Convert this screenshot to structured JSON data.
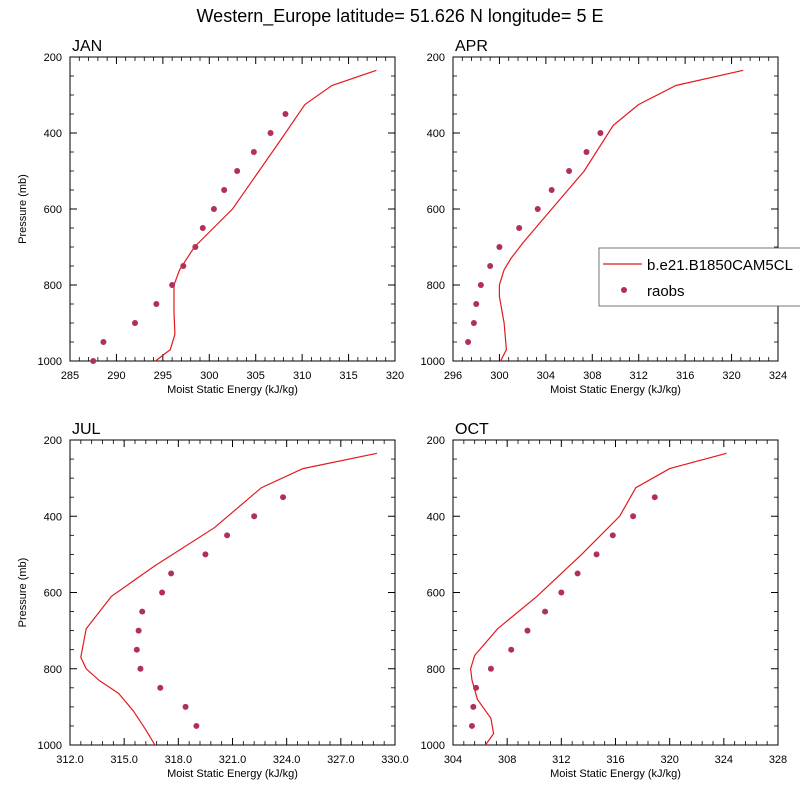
{
  "title": "Western_Europe  latitude= 51.626 N longitude= 5 E",
  "legend": {
    "model_label": "b.e21.B1850CAM5CL",
    "obs_label": "raobs",
    "line_color": "#e31a1c",
    "dot_color": "#b0305a"
  },
  "chart_data": [
    {
      "type": "line",
      "panel": "JAN",
      "xlabel": "Moist Static Energy (kJ/kg)",
      "ylabel": "Pressure (mb)",
      "xlim": [
        285,
        320
      ],
      "xticks": [
        285,
        290,
        295,
        300,
        305,
        310,
        315,
        320
      ],
      "xtick_labels": [
        "285",
        "290",
        "295",
        "300",
        "305",
        "310",
        "315",
        "320"
      ],
      "ylim": [
        1000,
        200
      ],
      "yticks": [
        200,
        400,
        600,
        800,
        1000
      ],
      "ytick_labels": [
        "200",
        "400",
        "600",
        "800",
        "1000"
      ],
      "model": {
        "x": [
          294.2,
          295.8,
          296.3,
          296.2,
          296.2,
          296.8,
          298.4,
          302.5,
          307.5,
          310.3,
          313.2,
          318.0
        ],
        "y": [
          1000,
          970,
          930,
          870,
          800,
          760,
          700,
          600,
          425,
          325,
          275,
          235
        ]
      },
      "obs": {
        "x": [
          287.5,
          288.6,
          292.0,
          294.3,
          296.0,
          297.2,
          298.5,
          299.3,
          300.5,
          301.6,
          303.0,
          304.8,
          306.6,
          308.2
        ],
        "y": [
          1000,
          950,
          900,
          850,
          800,
          750,
          700,
          650,
          600,
          550,
          500,
          450,
          400,
          350
        ]
      }
    },
    {
      "type": "line",
      "panel": "APR",
      "xlabel": "Moist Static Energy (kJ/kg)",
      "ylabel": "",
      "xlim": [
        296,
        324
      ],
      "xticks": [
        296,
        300,
        304,
        308,
        312,
        316,
        320,
        324
      ],
      "xtick_labels": [
        "296",
        "300",
        "304",
        "308",
        "312",
        "316",
        "320",
        "324"
      ],
      "ylim": [
        1000,
        200
      ],
      "yticks": [
        200,
        400,
        600,
        800,
        1000
      ],
      "ytick_labels": [
        "200",
        "400",
        "600",
        "800",
        "1000"
      ],
      "model": {
        "x": [
          300.1,
          300.6,
          300.4,
          300.0,
          300.0,
          300.4,
          301.0,
          302.0,
          304.5,
          307.3,
          309.8,
          312.0,
          315.2,
          321.0
        ],
        "y": [
          1000,
          970,
          900,
          830,
          800,
          760,
          730,
          690,
          600,
          500,
          380,
          325,
          275,
          235
        ]
      },
      "obs": {
        "x": [
          297.3,
          297.8,
          298.0,
          298.4,
          299.2,
          300.0,
          301.7,
          303.3,
          304.5,
          306.0,
          307.5,
          308.7
        ],
        "y": [
          950,
          900,
          850,
          800,
          750,
          700,
          650,
          600,
          550,
          500,
          450,
          400
        ]
      }
    },
    {
      "type": "line",
      "panel": "JUL",
      "xlabel": "Moist Static Energy (kJ/kg)",
      "ylabel": "Pressure (mb)",
      "xlim": [
        312,
        330
      ],
      "xticks": [
        312,
        315,
        318,
        321,
        324,
        327,
        330
      ],
      "xtick_labels": [
        "312.0",
        "315.0",
        "318.0",
        "321.0",
        "324.0",
        "327.0",
        "330.0"
      ],
      "ylim": [
        1000,
        200
      ],
      "yticks": [
        200,
        400,
        600,
        800,
        1000
      ],
      "ytick_labels": [
        "200",
        "400",
        "600",
        "800",
        "1000"
      ],
      "model": {
        "x": [
          316.7,
          316.2,
          315.5,
          314.7,
          313.6,
          312.9,
          312.6,
          312.9,
          314.3,
          316.7,
          320.0,
          322.6,
          324.9,
          329.0
        ],
        "y": [
          1000,
          960,
          910,
          865,
          830,
          800,
          770,
          695,
          610,
          530,
          430,
          325,
          275,
          235
        ]
      },
      "obs": {
        "x": [
          319.0,
          318.4,
          317.0,
          315.9,
          315.7,
          315.8,
          316.0,
          317.1,
          317.6,
          319.5,
          320.7,
          322.2,
          323.8
        ],
        "y": [
          950,
          900,
          850,
          800,
          750,
          700,
          650,
          600,
          550,
          500,
          450,
          400,
          350
        ]
      }
    },
    {
      "type": "line",
      "panel": "OCT",
      "xlabel": "Moist Static Energy (kJ/kg)",
      "ylabel": "",
      "xlim": [
        304,
        328
      ],
      "xticks": [
        304,
        308,
        312,
        316,
        320,
        324,
        328
      ],
      "xtick_labels": [
        "304",
        "308",
        "312",
        "316",
        "320",
        "324",
        "328"
      ],
      "ylim": [
        1000,
        200
      ],
      "yticks": [
        200,
        400,
        600,
        800,
        1000
      ],
      "ytick_labels": [
        "200",
        "400",
        "600",
        "800",
        "1000"
      ],
      "model": {
        "x": [
          306.4,
          307.0,
          306.8,
          305.8,
          305.4,
          305.3,
          305.6,
          307.3,
          310.2,
          313.5,
          316.3,
          317.5,
          320.0,
          324.2
        ],
        "y": [
          1000,
          970,
          930,
          880,
          830,
          800,
          765,
          695,
          610,
          500,
          400,
          325,
          275,
          235
        ]
      },
      "obs": {
        "x": [
          305.4,
          305.5,
          305.7,
          306.8,
          308.3,
          309.5,
          310.8,
          312.0,
          313.2,
          314.6,
          315.8,
          317.3,
          318.9
        ],
        "y": [
          950,
          900,
          850,
          800,
          750,
          700,
          650,
          600,
          550,
          500,
          450,
          400,
          350
        ]
      }
    }
  ]
}
